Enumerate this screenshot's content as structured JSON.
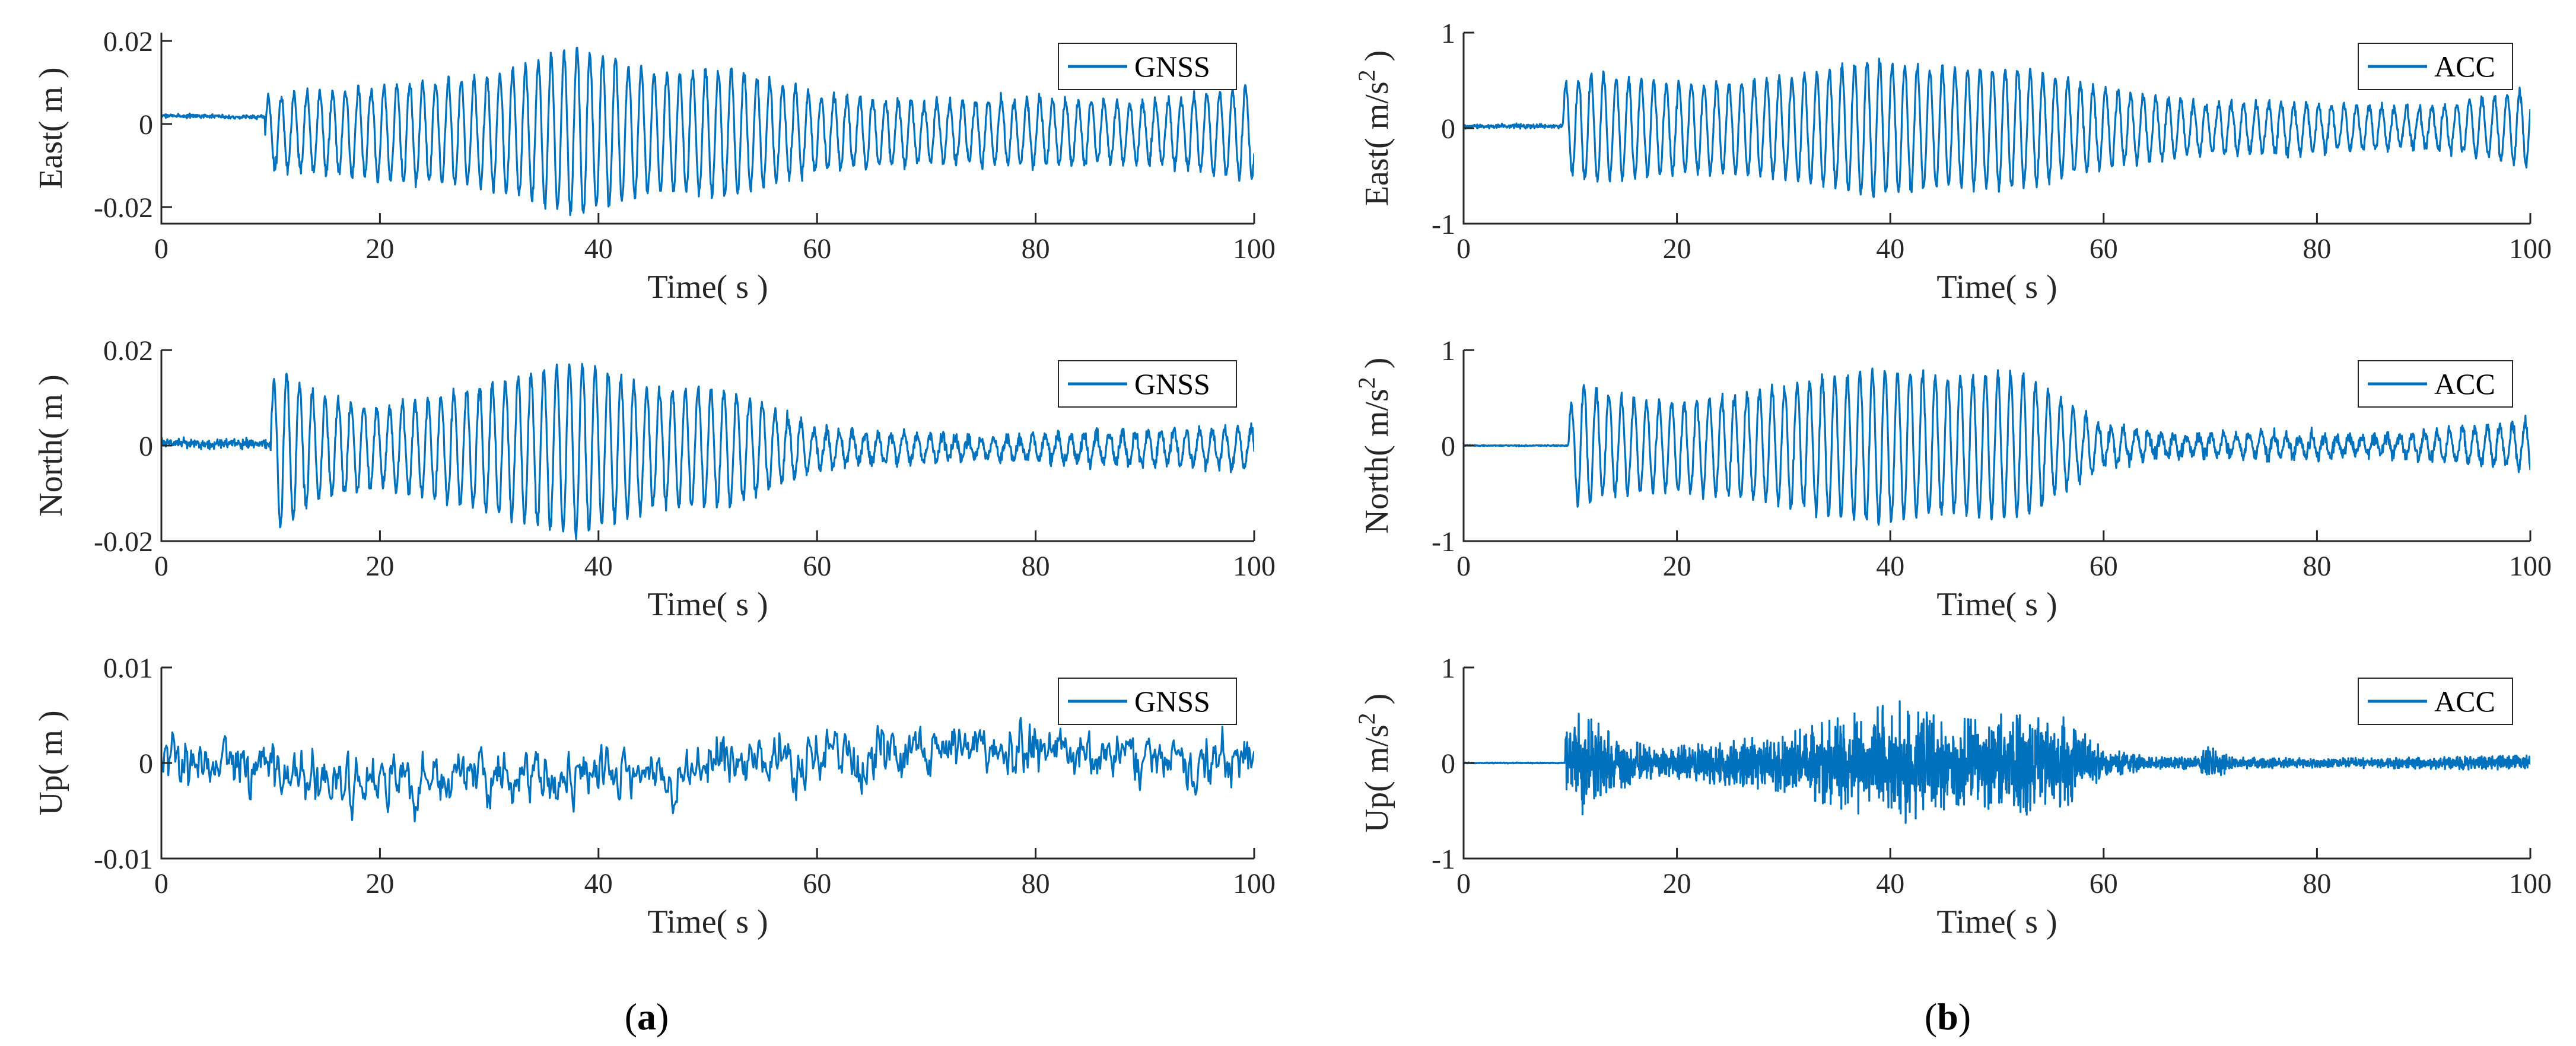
{
  "figure": {
    "caption_left": {
      "open": "(",
      "letter": "a",
      "close": ")"
    },
    "caption_right": {
      "open": "(",
      "letter": "b",
      "close": ")"
    }
  },
  "colors": {
    "series": "#0072BD",
    "axis": "#262626",
    "background": "#ffffff"
  },
  "chart_data": [
    {
      "type": "line",
      "id": "gnss-east",
      "ylabel": "East( m )",
      "xlabel": "Time( s )",
      "xlim": [
        0,
        100
      ],
      "ylim": [
        -0.024,
        0.022
      ],
      "xticks": [
        0,
        20,
        40,
        60,
        80,
        100
      ],
      "xtick_labels": [
        "0",
        "20",
        "40",
        "60",
        "80",
        "100"
      ],
      "yticks": [
        -0.02,
        0,
        0.02
      ],
      "ytick_labels": [
        "-0.02",
        "0",
        "0.02"
      ],
      "legend": "GNSS",
      "legend_position": "top-right",
      "signal": {
        "onset": 9.5,
        "pre_offset": 0.002,
        "pre_slope": -0.00035,
        "pre_noise": 0.0004,
        "freq": 0.85,
        "noise": 0.0012,
        "offset": -0.002,
        "envelope": {
          "t": [
            9.5,
            12,
            20,
            30,
            38,
            45,
            52,
            60,
            70,
            80,
            90,
            100
          ],
          "a": [
            0.008,
            0.009,
            0.011,
            0.013,
            0.02,
            0.014,
            0.015,
            0.009,
            0.007,
            0.008,
            0.007,
            0.011
          ]
        }
      }
    },
    {
      "type": "line",
      "id": "gnss-north",
      "ylabel": "North( m )",
      "xlabel": "Time( s )",
      "xlim": [
        0,
        100
      ],
      "ylim": [
        -0.02,
        0.02
      ],
      "xticks": [
        0,
        20,
        40,
        60,
        80,
        100
      ],
      "xtick_labels": [
        "0",
        "20",
        "40",
        "60",
        "80",
        "100"
      ],
      "yticks": [
        -0.02,
        0,
        0.02
      ],
      "ytick_labels": [
        "-0.02",
        "0",
        "0.02"
      ],
      "legend": "GNSS",
      "legend_position": "top-right",
      "signal": {
        "onset": 10,
        "pre_offset": 0.0005,
        "pre_slope": -0.00015,
        "pre_noise": 0.0008,
        "freq": 0.85,
        "noise": 0.0012,
        "offset": -0.0005,
        "envelope": {
          "t": [
            10,
            11,
            14,
            20,
            30,
            38,
            45,
            52,
            60,
            65,
            75,
            85,
            100
          ],
          "a": [
            0.012,
            0.017,
            0.011,
            0.008,
            0.013,
            0.018,
            0.012,
            0.012,
            0.004,
            0.003,
            0.002,
            0.003,
            0.004
          ]
        }
      }
    },
    {
      "type": "line",
      "id": "gnss-up",
      "ylabel": "Up( m )",
      "xlabel": "Time( s )",
      "xlim": [
        0,
        100
      ],
      "ylim": [
        -0.01,
        0.01
      ],
      "xticks": [
        0,
        20,
        40,
        60,
        80,
        100
      ],
      "xtick_labels": [
        "0",
        "20",
        "40",
        "60",
        "80",
        "100"
      ],
      "yticks": [
        -0.01,
        0,
        0.01
      ],
      "ytick_labels": [
        "-0.01",
        "0",
        "0.01"
      ],
      "legend": "GNSS",
      "legend_position": "top-right",
      "signal": {
        "mode": "noise",
        "noise": 0.0024,
        "drift": {
          "t": [
            0,
            20,
            40,
            60,
            80,
            100
          ],
          "v": [
            0.0005,
            -0.0025,
            -0.0015,
            0.0005,
            0.001,
            0.0
          ]
        }
      }
    },
    {
      "type": "line",
      "id": "acc-east",
      "ylabel": "East( m/s",
      "ylabel_sup": "2",
      "ylabel_tail": " )",
      "xlabel": "Time( s )",
      "xlim": [
        0,
        100
      ],
      "ylim": [
        -1,
        1
      ],
      "xticks": [
        0,
        20,
        40,
        60,
        80,
        100
      ],
      "xtick_labels": [
        "0",
        "20",
        "40",
        "60",
        "80",
        "100"
      ],
      "yticks": [
        -1,
        0,
        1
      ],
      "ytick_labels": [
        "-1",
        "0",
        "1"
      ],
      "legend": "ACC",
      "legend_position": "top-right",
      "signal": {
        "onset": 9.3,
        "pre_offset": 0.02,
        "pre_noise": 0.02,
        "freq": 0.85,
        "noise": 0.05,
        "offset": 0.0,
        "envelope": {
          "t": [
            9.3,
            12,
            20,
            30,
            38,
            45,
            52,
            60,
            70,
            80,
            90,
            100
          ],
          "a": [
            0.45,
            0.55,
            0.45,
            0.5,
            0.7,
            0.6,
            0.62,
            0.4,
            0.25,
            0.25,
            0.2,
            0.38
          ]
        }
      }
    },
    {
      "type": "line",
      "id": "acc-north",
      "ylabel": "North( m/s",
      "ylabel_sup": "2",
      "ylabel_tail": " )",
      "xlabel": "Time( s )",
      "xlim": [
        0,
        100
      ],
      "ylim": [
        -1,
        1
      ],
      "xticks": [
        0,
        20,
        40,
        60,
        80,
        100
      ],
      "xtick_labels": [
        "0",
        "20",
        "40",
        "60",
        "80",
        "100"
      ],
      "yticks": [
        -1,
        0,
        1
      ],
      "ytick_labels": [
        "-1",
        "0",
        "1"
      ],
      "legend": "ACC",
      "legend_position": "top-right",
      "signal": {
        "onset": 9.8,
        "pre_offset": 0.0,
        "pre_noise": 0.005,
        "freq": 0.85,
        "noise": 0.06,
        "offset": 0.0,
        "envelope": {
          "t": [
            9.8,
            11,
            14,
            20,
            30,
            38,
            45,
            52,
            60,
            65,
            75,
            85,
            95,
            100
          ],
          "a": [
            0.35,
            0.65,
            0.5,
            0.45,
            0.6,
            0.8,
            0.7,
            0.75,
            0.2,
            0.1,
            0.12,
            0.08,
            0.18,
            0.25
          ]
        }
      }
    },
    {
      "type": "line",
      "id": "acc-up",
      "ylabel": "Up( m/s",
      "ylabel_sup": "2",
      "ylabel_tail": " )",
      "xlabel": "Time( s )",
      "xlim": [
        0,
        100
      ],
      "ylim": [
        -1,
        1
      ],
      "xticks": [
        0,
        20,
        40,
        60,
        80,
        100
      ],
      "xtick_labels": [
        "0",
        "20",
        "40",
        "60",
        "80",
        "100"
      ],
      "yticks": [
        -1,
        0,
        1
      ],
      "ytick_labels": [
        "-1",
        "0",
        "1"
      ],
      "legend": "ACC",
      "legend_position": "top-right",
      "signal": {
        "mode": "burst",
        "onset": 9.5,
        "pre_noise": 0.004,
        "envelope": {
          "t": [
            9.5,
            11,
            14,
            18,
            22,
            30,
            36,
            41,
            44,
            48,
            52,
            56,
            60,
            65,
            69,
            70,
            72,
            80,
            90,
            100
          ],
          "a": [
            0.3,
            0.55,
            0.3,
            0.15,
            0.2,
            0.3,
            0.5,
            0.65,
            0.5,
            0.45,
            0.55,
            0.5,
            0.15,
            0.06,
            0.08,
            0.22,
            0.06,
            0.05,
            0.06,
            0.08
          ]
        }
      }
    }
  ]
}
